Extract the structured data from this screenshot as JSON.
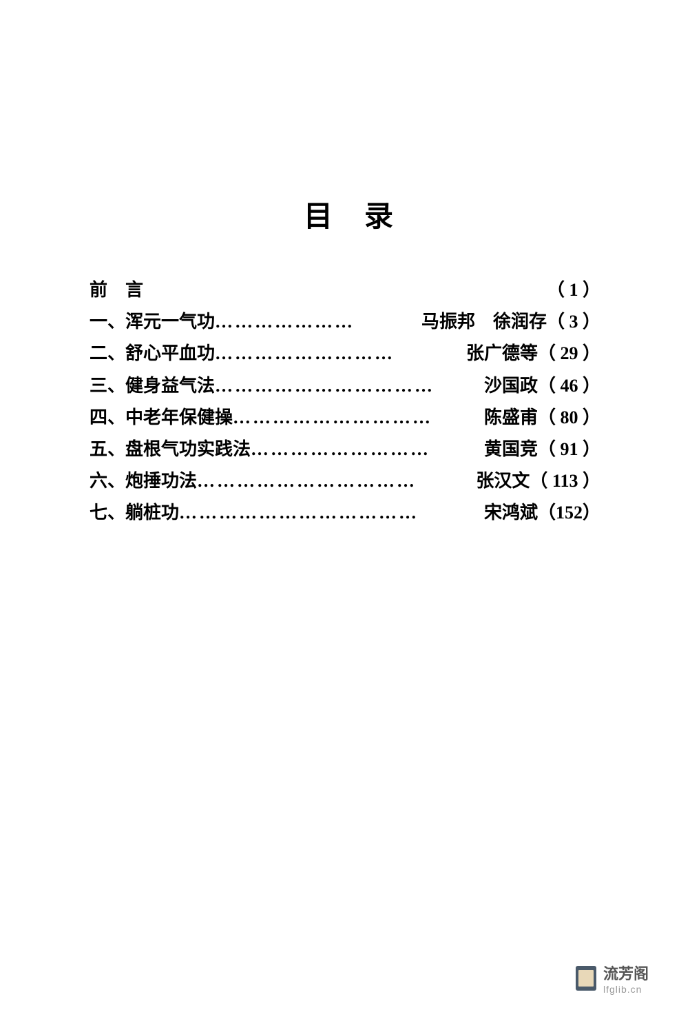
{
  "title": "目录",
  "entries": [
    {
      "label": "前　言",
      "dots": "",
      "author": "",
      "page": "（ 1 ）"
    },
    {
      "label": "一、浑元一气功",
      "dots": "…………………",
      "author": "马振邦　徐润存",
      "page": "（ 3 ）"
    },
    {
      "label": "二、舒心平血功",
      "dots": "………………………",
      "author": "张广德等",
      "page": "（ 29 ）"
    },
    {
      "label": "三、健身益气法",
      "dots": "……………………………",
      "author": "沙国政",
      "page": "（ 46 ）"
    },
    {
      "label": "四、中老年保健操",
      "dots": "…………………………",
      "author": "陈盛甫",
      "page": "（ 80 ）"
    },
    {
      "label": "五、盘根气功实践法",
      "dots": "………………………",
      "author": "黄国竞",
      "page": "（ 91 ）"
    },
    {
      "label": "六、炮捶功法",
      "dots": "……………………………",
      "author": "张汉文",
      "page": "（ 113 ）"
    },
    {
      "label": "七、躺桩功",
      "dots": "………………………………",
      "author": "宋鸿斌",
      "page": "（152）"
    }
  ],
  "footer": {
    "name": "流芳阁",
    "url": "lfglib.cn"
  },
  "styles": {
    "background_color": "#ffffff",
    "text_color": "#000000",
    "title_fontsize": 42,
    "entry_fontsize": 26,
    "footer_name_color": "#555555",
    "footer_url_color": "#999999"
  }
}
